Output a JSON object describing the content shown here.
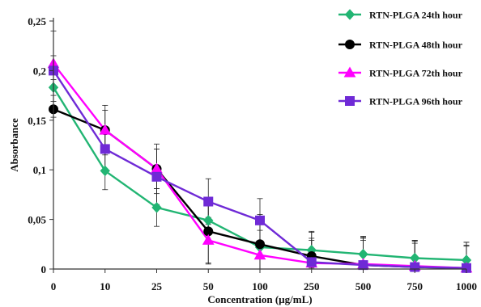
{
  "chart_data": {
    "type": "line",
    "title": "",
    "xlabel": "Concentration (µg/mL)",
    "ylabel": "Absorbance",
    "categories": [
      "0",
      "10",
      "25",
      "50",
      "100",
      "250",
      "500",
      "750",
      "1000"
    ],
    "yticks": [
      "0",
      "0,05",
      "0,1",
      "0,15",
      "0,2",
      "0,25"
    ],
    "ylim": [
      0,
      0.25
    ],
    "grid": false,
    "legend_position": "top-right",
    "series": [
      {
        "name": "RTN-PLGA 24th hour",
        "color": "#22b573",
        "marker": "diamond",
        "values": [
          0.183,
          0.099,
          0.062,
          0.049,
          0.022,
          0.019,
          0.015,
          0.011,
          0.009
        ],
        "errors": [
          0.008,
          0.019,
          0.019,
          0.023,
          0.03,
          0.018,
          0.018,
          0.018,
          0.018
        ]
      },
      {
        "name": "RTN-PLGA 48th hour",
        "color": "#000000",
        "marker": "circle",
        "values": [
          0.161,
          0.14,
          0.101,
          0.038,
          0.025,
          0.013,
          0.004,
          0.002,
          0.001
        ],
        "errors": [
          0.008,
          0.025,
          0.025,
          0.033,
          0.03,
          0.025,
          0.028,
          0.027,
          0.026
        ]
      },
      {
        "name": "RTN-PLGA 72th hour",
        "color": "#ff00ff",
        "marker": "triangle",
        "values": [
          0.207,
          0.14,
          0.101,
          0.029,
          0.014,
          0.006,
          0.005,
          0.003,
          0.001
        ],
        "errors": [
          0.008,
          0.02,
          0.02,
          0.023,
          0.025,
          0.025,
          0.026,
          0.025,
          0.022
        ]
      },
      {
        "name": "RTN-PLGA 96th hour",
        "color": "#6f2ad6",
        "marker": "square",
        "values": [
          0.2,
          0.121,
          0.093,
          0.068,
          0.049,
          0.007,
          0.004,
          0.002,
          0.001
        ],
        "errors": [
          0.04,
          0.02,
          0.028,
          0.023,
          0.022,
          0.022,
          0.025,
          0.024,
          0.023
        ]
      }
    ]
  }
}
